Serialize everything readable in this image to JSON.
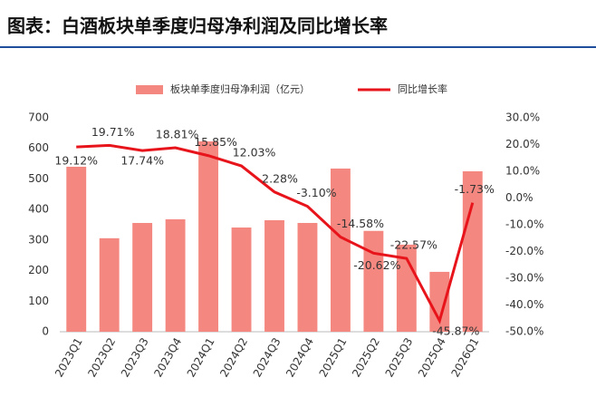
{
  "chart_data": {
    "type": "bar-line",
    "title": "图表：白酒板块单季度归母净利润及同比增长率",
    "categories": [
      "2023Q1",
      "2023Q2",
      "2023Q3",
      "2023Q4",
      "2024Q1",
      "2024Q2",
      "2024Q3",
      "2024Q4",
      "2025Q1",
      "2025Q2",
      "2025Q3",
      "2025Q4",
      "2026Q1"
    ],
    "series": [
      {
        "name": "板块单季度归母净利润（亿元）",
        "type": "bar",
        "color": "#f4877f",
        "values": [
          540,
          306,
          356,
          368,
          623,
          341,
          365,
          356,
          534,
          330,
          285,
          196,
          525
        ]
      },
      {
        "name": "同比增长率",
        "type": "line",
        "axis": "y2",
        "color": "#e8141b",
        "values": [
          19.12,
          19.71,
          17.74,
          18.81,
          15.85,
          12.03,
          2.28,
          -3.1,
          -14.58,
          -20.62,
          -22.57,
          -45.87,
          -1.73
        ],
        "value_labels": [
          "19.12%",
          "19.71%",
          "17.74%",
          "18.81%",
          "15.85%",
          "12.03%",
          "2.28%",
          "-3.10%",
          "-14.58%",
          "-20.62%",
          "-22.57%",
          "-45.87%",
          "-1.73%"
        ]
      }
    ],
    "ylim": [
      0,
      700
    ],
    "yticks": [
      0,
      100,
      200,
      300,
      400,
      500,
      600,
      700
    ],
    "y2lim": [
      -50,
      30
    ],
    "y2ticks": [
      {
        "value": -50,
        "label": "-50.0%"
      },
      {
        "value": -40,
        "label": "-40.0%"
      },
      {
        "value": -30,
        "label": "-30.0%"
      },
      {
        "value": -20,
        "label": "-20.0%"
      },
      {
        "value": -10,
        "label": "-10.0%"
      },
      {
        "value": 0,
        "label": "0.0%"
      },
      {
        "value": 10,
        "label": "10.0%"
      },
      {
        "value": 20,
        "label": "20.0%"
      },
      {
        "value": 30,
        "label": "30.0%"
      }
    ],
    "grid": false,
    "legend": "top"
  }
}
